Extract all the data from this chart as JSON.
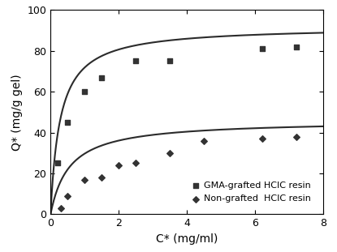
{
  "gma_x": [
    0.2,
    0.5,
    1.0,
    1.5,
    2.5,
    3.5,
    6.2,
    7.2
  ],
  "gma_y": [
    25,
    45,
    60,
    67,
    75,
    75,
    81,
    82
  ],
  "non_x": [
    0.3,
    0.5,
    1.0,
    1.5,
    2.0,
    2.5,
    3.5,
    4.5,
    6.2,
    7.2
  ],
  "non_y": [
    3,
    9,
    17,
    18,
    24,
    25,
    30,
    36,
    37,
    38
  ],
  "gma_langmuir_qmax": 92.0,
  "gma_langmuir_kd": 0.28,
  "non_langmuir_qmax": 46.0,
  "non_langmuir_kd": 0.55,
  "xlabel": "C* (mg/ml)",
  "ylabel": "Q* (mg/g gel)",
  "xlim": [
    0,
    8
  ],
  "ylim": [
    0,
    100
  ],
  "xticks": [
    0,
    2,
    4,
    6,
    8
  ],
  "yticks": [
    0,
    20,
    40,
    60,
    80,
    100
  ],
  "legend_gma": "GMA-grafted HCIC resin",
  "legend_non": "Non-grafted  HCIC resin",
  "line_color": "#2b2b2b",
  "marker_color": "#333333",
  "bg_color": "#ffffff"
}
